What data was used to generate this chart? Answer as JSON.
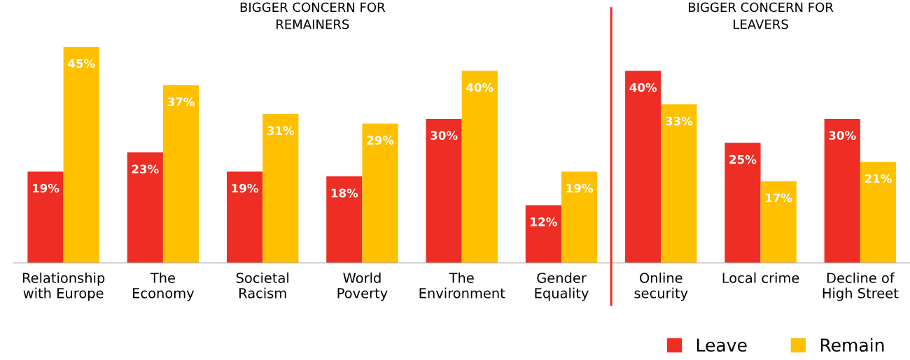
{
  "chart_data": {
    "type": "bar",
    "categories": [
      "Relationship\nwith Europe",
      "The\nEconomy",
      "Societal\nRacism",
      "World\nPoverty",
      "The\nEnvironment",
      "Gender\nEquality",
      "Online\nsecurity",
      "Local crime",
      "Decline of\nHigh Street"
    ],
    "series": [
      {
        "name": "Leave",
        "color": "#ee2e24",
        "values": [
          19,
          23,
          19,
          18,
          30,
          12,
          40,
          25,
          30
        ],
        "value_labels": [
          "19%",
          "23%",
          "19%",
          "18%",
          "30%",
          "12%",
          "40%",
          "25%",
          "30%"
        ]
      },
      {
        "name": "Remain",
        "color": "#ffc000",
        "values": [
          45,
          37,
          31,
          29,
          40,
          19,
          33,
          17,
          21
        ],
        "value_labels": [
          "45%",
          "37%",
          "31%",
          "29%",
          "40%",
          "19%",
          "33%",
          "17%",
          "21%"
        ]
      }
    ],
    "tick_labels": "x",
    "grid": false,
    "legend": "bottom right",
    "annotations": [
      "BIGGER CONCERN FOR\nREMAINERS",
      "BIGGER CONCERN FOR\nLEAVERS"
    ]
  }
}
